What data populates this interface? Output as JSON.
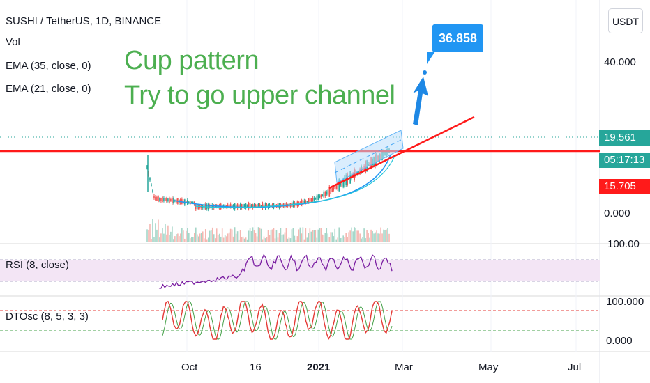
{
  "chart_data": {
    "type": "line",
    "title": "SUSHI / TetherUS, 1D, BINANCE",
    "currency_button": "USDT",
    "legend": [
      "Vol",
      "EMA (35, close, 0)",
      "EMA (21, close, 0)"
    ],
    "annotations": [
      "Cup pattern",
      "Try to go upper channel"
    ],
    "target_label": "36.858",
    "price_axis_ticks": [
      "40.000",
      "0.000"
    ],
    "price_labels": [
      {
        "text": "19.561",
        "color": "#26a69a"
      },
      {
        "text": "05:17:13",
        "color": "#26a69a"
      },
      {
        "text": "15.705",
        "color": "#ff1a1a"
      }
    ],
    "time_axis_ticks": [
      "Oct",
      "16",
      "2021",
      "Mar",
      "May",
      "Jul"
    ],
    "rsi_pane": {
      "label": "RSI (8, close)",
      "ticks": [
        "100.00"
      ]
    },
    "dtosc_pane": {
      "label": "DTOsc (8, 5, 3, 3)",
      "ticks": [
        "100.000",
        "0.000"
      ]
    },
    "colors": {
      "bull": "#26a69a",
      "bear": "#ef5350",
      "ema": "#2196f3",
      "resistance": "#ff1a1a",
      "annotation": "#4caf50",
      "rsi_line": "#7b1fa2",
      "rsi_band": "#f3e5f5",
      "dtosc_fast": "#e53935",
      "dtosc_slow": "#43a047"
    }
  }
}
